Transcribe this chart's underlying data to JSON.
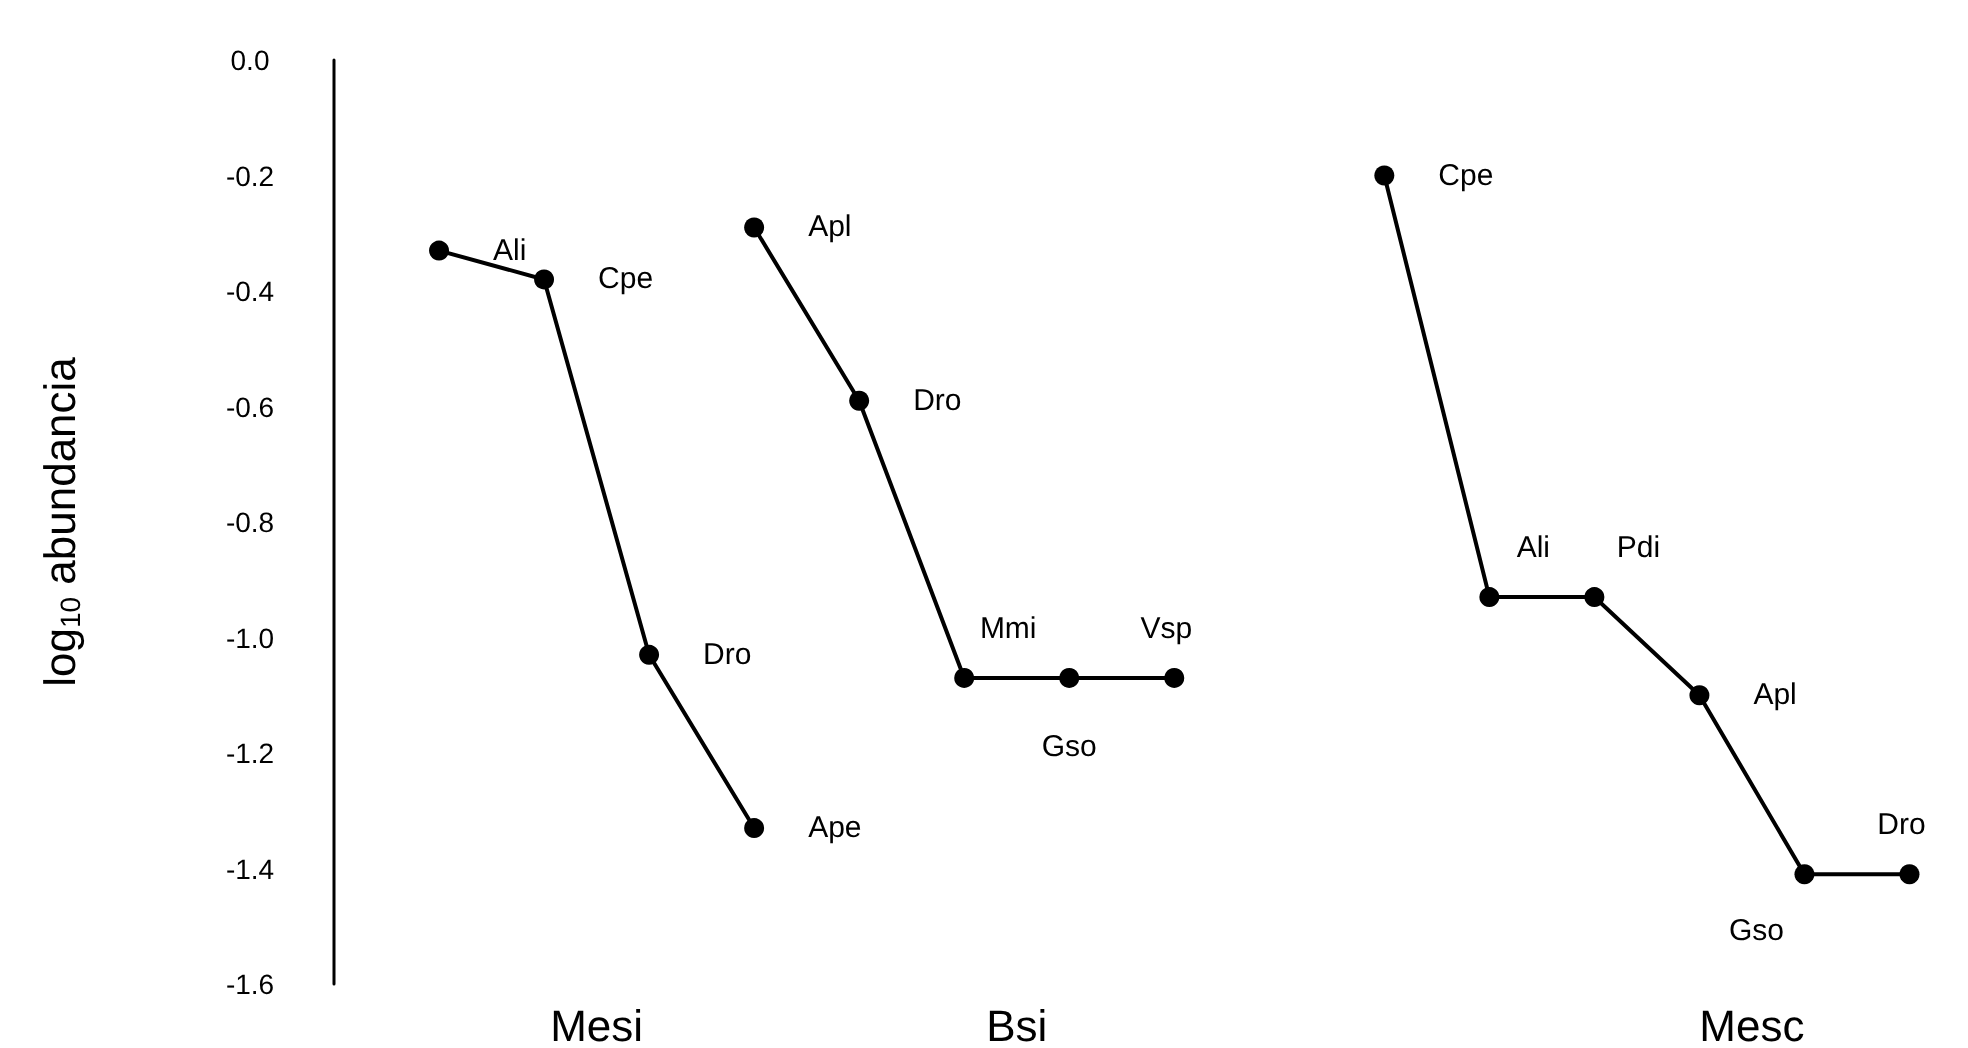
{
  "chart_data": {
    "type": "line",
    "ylabel": "log$_{10}$ abundancia",
    "categories": [
      null,
      null,
      null,
      null,
      null,
      "Mesi",
      null,
      null,
      null,
      null,
      null,
      null,
      null,
      "Bsi",
      null,
      null,
      null,
      null,
      null,
      null,
      null,
      null,
      null,
      null,
      null,
      null,
      null,
      "Mesc",
      null,
      null,
      null,
      null
    ],
    "ylim": [
      -1.6,
      0
    ],
    "yticks": [
      {
        "value": 0,
        "label": "0.0"
      },
      {
        "value": -0.2,
        "label": "-0.2"
      },
      {
        "value": -0.4,
        "label": "-0.4"
      },
      {
        "value": -0.6,
        "label": "-0.6"
      },
      {
        "value": -0.8,
        "label": "-0.8"
      },
      {
        "value": -1.0,
        "label": "-1.0"
      },
      {
        "value": -1.2,
        "label": "-1.2"
      },
      {
        "value": -1.4,
        "label": "-1.4"
      },
      {
        "value": -1.6,
        "label": "-1.6"
      }
    ],
    "series": [
      {
        "color": "#000000",
        "values": [
          null,
          null,
          -0.33,
          null,
          -0.38,
          null,
          -1.03,
          null,
          -1.33,
          null,
          null,
          null,
          null,
          null,
          null,
          null,
          null,
          null,
          null,
          null,
          null,
          null,
          null,
          null,
          null,
          null,
          null,
          null,
          null,
          null,
          null,
          null
        ],
        "value_labels": [
          null,
          null,
          "Ali",
          null,
          "Cpe",
          null,
          "Dro",
          null,
          "Ape",
          null,
          null,
          null,
          null,
          null,
          null,
          null,
          null,
          null,
          null,
          null,
          null,
          null,
          null,
          null,
          null,
          null,
          null,
          null,
          null,
          null,
          null,
          null
        ]
      },
      {
        "color": "#000000",
        "values": [
          null,
          null,
          null,
          null,
          null,
          null,
          null,
          null,
          -0.29,
          null,
          -0.59,
          null,
          -1.07,
          null,
          -1.07,
          null,
          -1.07,
          null,
          null,
          null,
          null,
          null,
          null,
          null,
          null,
          null,
          null,
          null,
          null,
          null,
          null,
          null
        ],
        "value_labels": [
          null,
          null,
          null,
          null,
          null,
          null,
          null,
          null,
          "Apl",
          null,
          "Dro",
          null,
          "Mmi",
          null,
          "Gso",
          null,
          "Vsp",
          null,
          null,
          null,
          null,
          null,
          null,
          null,
          null,
          null,
          null,
          null,
          null,
          null,
          null,
          null
        ]
      },
      {
        "color": "#000000",
        "values": [
          null,
          null,
          null,
          null,
          null,
          null,
          null,
          null,
          null,
          null,
          null,
          null,
          null,
          null,
          null,
          null,
          null,
          null,
          null,
          null,
          -0.2,
          null,
          -0.93,
          null,
          -0.93,
          null,
          -1.1,
          null,
          -1.41,
          null,
          -1.41,
          null
        ],
        "value_labels": [
          null,
          null,
          null,
          null,
          null,
          null,
          null,
          null,
          null,
          null,
          null,
          null,
          null,
          null,
          null,
          null,
          null,
          null,
          null,
          null,
          "Cpe",
          null,
          "Ali",
          null,
          "Pdi",
          null,
          "Apl",
          null,
          "Gso",
          null,
          "Dro",
          null
        ]
      }
    ],
    "grid": false,
    "marker": "circle",
    "line_style": "solid"
  }
}
